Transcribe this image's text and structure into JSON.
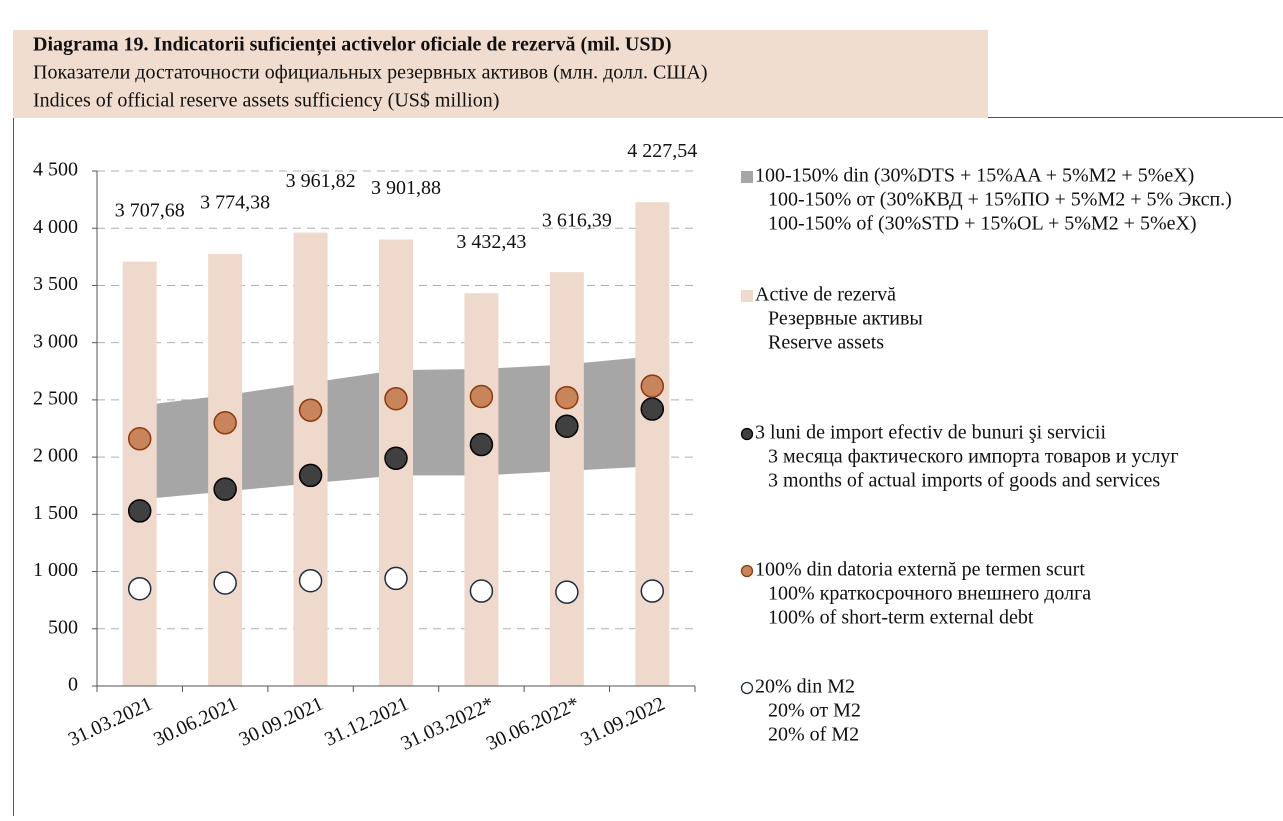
{
  "chart_data": {
    "type": "bar",
    "title": "Diagrama 19. Indicatorii suficienței activelor oficiale de rezervă (mil. USD)",
    "subtitle": [
      "Показатели достаточности официальных резервных активов (млн. долл. США)",
      "Indices of official reserve assets sufficiency (US$ million)"
    ],
    "categories": [
      "31.03.2021",
      "30.06.2021",
      "30.09.2021",
      "31.12.2021",
      "31.03.2022*",
      "30.06.2022*",
      "31.09.2022"
    ],
    "ylim": [
      0,
      4500
    ],
    "yticks": [
      0,
      500,
      {
        "value": 1000,
        "label": "1 000"
      },
      {
        "value": 1500,
        "label": "1 500"
      },
      {
        "value": 2000,
        "label": "2 000"
      },
      {
        "value": 2500,
        "label": "2 500"
      },
      {
        "value": 3000,
        "label": "3 000"
      },
      {
        "value": 3500,
        "label": "3 500"
      },
      {
        "value": 4000,
        "label": "4 000"
      },
      {
        "value": 4500,
        "label": "4 500"
      }
    ],
    "grid": true,
    "series": [
      {
        "name": [
          "100-150% din (30%DTS + 15%AA + 5%M2 + 5%eX)",
          "100-150% от (30%КВД  + 15%ПО + 5%М2 + 5% Эксп.)",
          "100-150% of (30%STD + 15%OL + 5%M2 + 5%eX)"
        ],
        "type": "range",
        "color": "#a6a6a6",
        "low": [
          1630,
          1700,
          1770,
          1840,
          1840,
          1880,
          1920
        ],
        "high": [
          2450,
          2540,
          2650,
          2760,
          2770,
          2810,
          2880
        ]
      },
      {
        "name": [
          "Active de rezervă",
          "Резервные активы",
          "Reserve assets"
        ],
        "type": "bar",
        "color": "#efd9cc",
        "values": [
          3707.68,
          3774.38,
          3961.82,
          3901.88,
          3432.43,
          3616.39,
          4227.54
        ],
        "value_labels": [
          "3 707,68",
          "3 774,38",
          "3 961,82",
          "3 901,88",
          "3 432,43",
          "3 616,39",
          "4 227,54"
        ]
      },
      {
        "name": [
          "3 luni de import efectiv de bunuri şi servicii",
          "3 месяца фактического импорта товаров и услуг",
          "3 months of actual imports of goods and services"
        ],
        "type": "dot",
        "color": "#404040",
        "stroke": "#000000",
        "values": [
          1530,
          1720,
          1840,
          1990,
          2110,
          2270,
          2420
        ]
      },
      {
        "name": [
          "100% din datoria externă pe termen scurt",
          "100% краткосрочного внешнего долга",
          "100% of short-term external debt"
        ],
        "type": "dot",
        "color": "#c8845a",
        "stroke": "#8b3a0e",
        "values": [
          2160,
          2300,
          2410,
          2510,
          2530,
          2520,
          2620
        ]
      },
      {
        "name": [
          "20% din M2",
          "20% от М2",
          "20% of M2"
        ],
        "type": "dot",
        "color": "#ffffff",
        "stroke": "#1f2d3d",
        "values": [
          850,
          900,
          920,
          940,
          830,
          820,
          830
        ]
      }
    ]
  }
}
